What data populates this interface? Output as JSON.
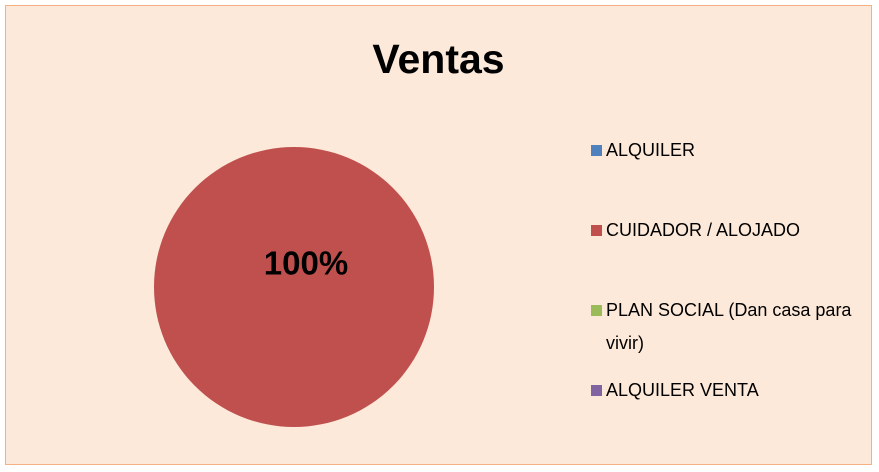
{
  "chart_data": {
    "type": "pie",
    "title": "Ventas",
    "categories": [
      "ALQUILER",
      "CUIDADOR / ALOJADO",
      "PLAN SOCIAL (Dan casa para vivir)",
      "ALQUILER VENTA"
    ],
    "values": [
      0,
      100,
      0,
      0
    ],
    "value_labels": [
      null,
      "100%",
      null,
      null
    ],
    "colors": [
      "#4f81bd",
      "#c0504d",
      "#9bbb59",
      "#8064a2"
    ],
    "legend": "right"
  }
}
